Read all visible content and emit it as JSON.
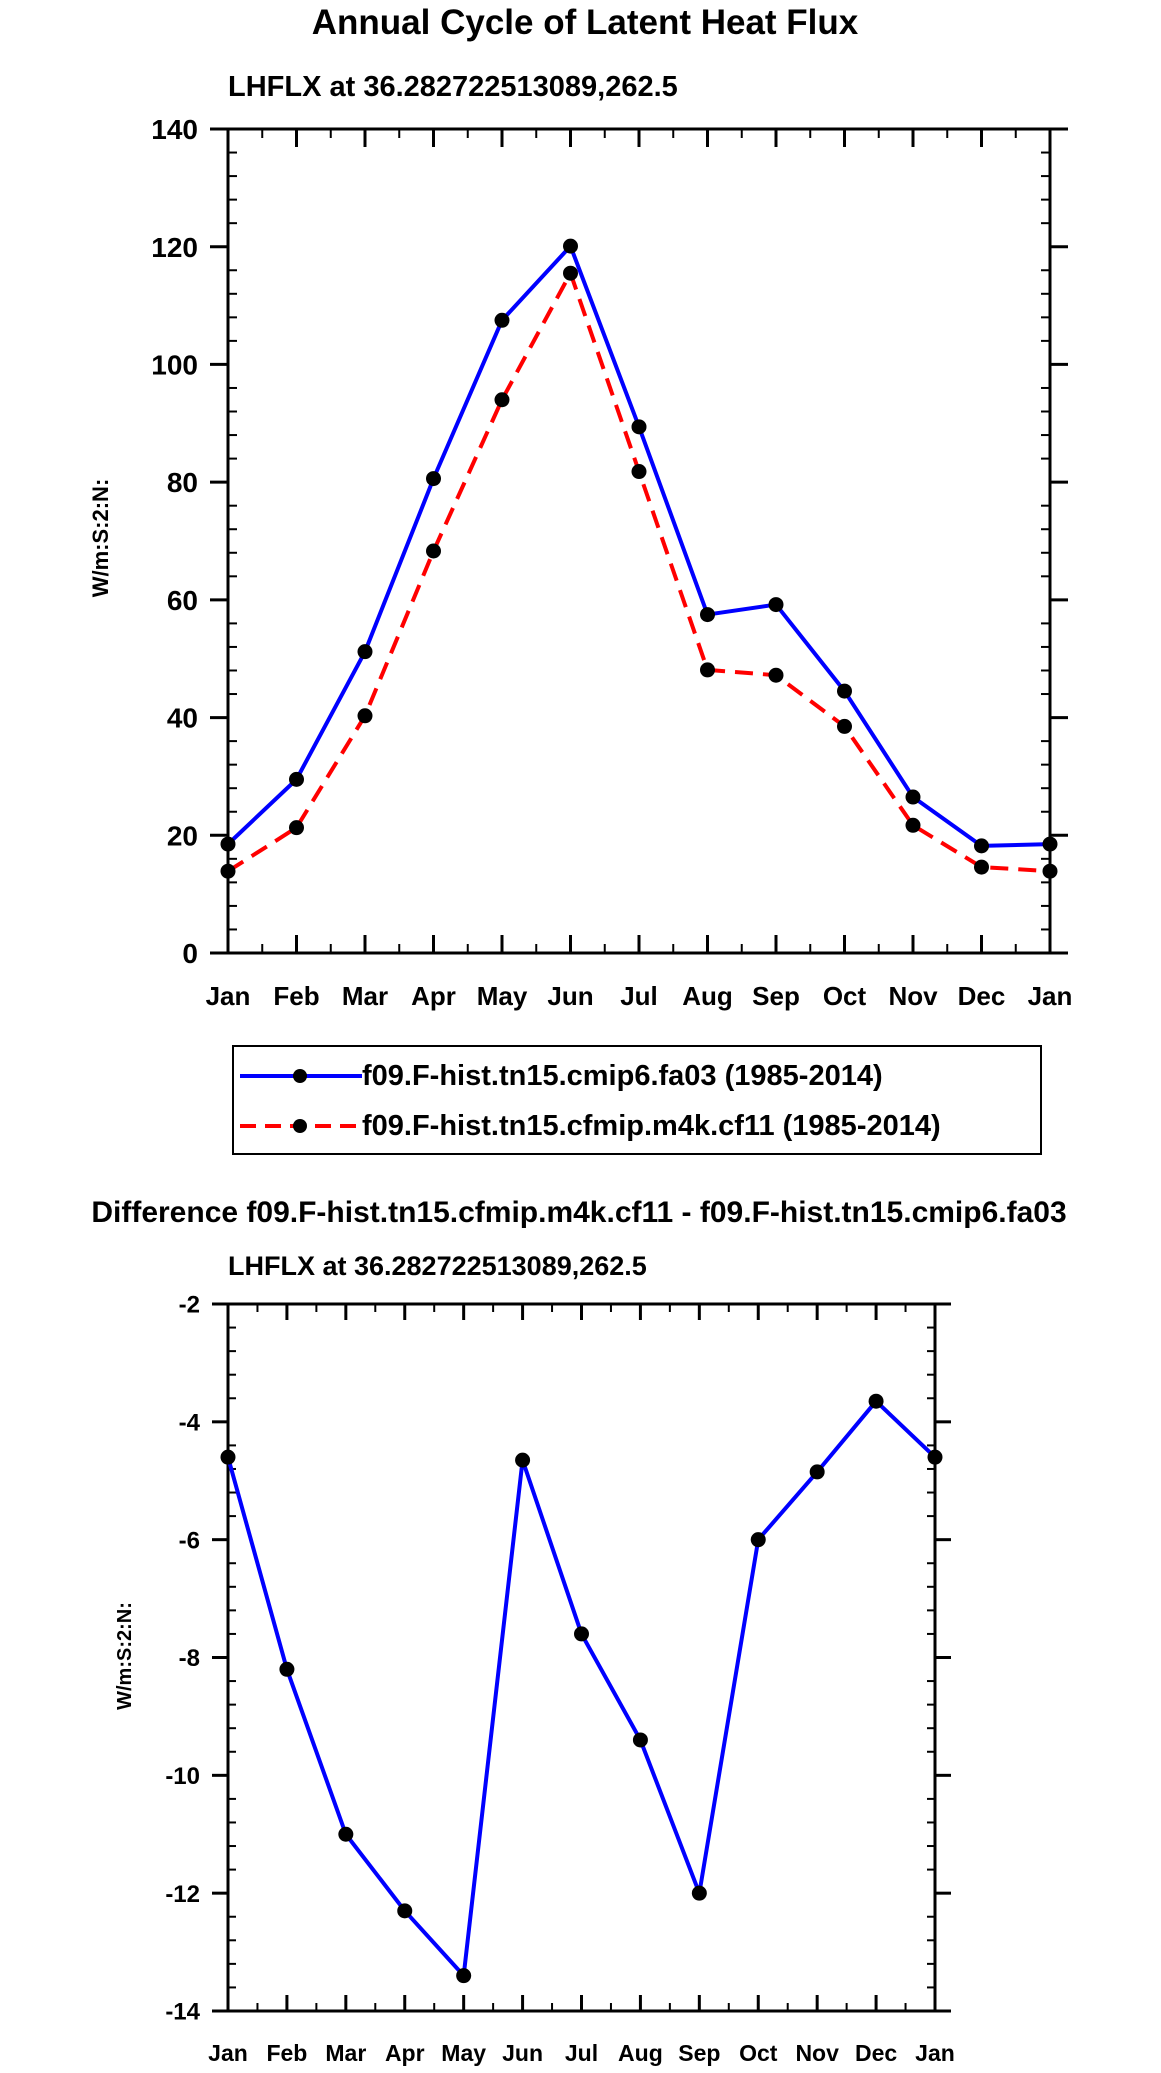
{
  "chart_data": [
    {
      "type": "line",
      "title": "Annual Cycle of Latent Heat Flux",
      "subtitle": "LHFLX at 36.282722513089,262.5",
      "xlabel": "",
      "ylabel": "W/m:S:2:N:",
      "categories": [
        "Jan",
        "Feb",
        "Mar",
        "Apr",
        "May",
        "Jun",
        "Jul",
        "Aug",
        "Sep",
        "Oct",
        "Nov",
        "Dec",
        "Jan"
      ],
      "ylim": [
        0,
        140
      ],
      "yticks": [
        0,
        20,
        40,
        60,
        80,
        100,
        120,
        140
      ],
      "ytick_labels": [
        "0",
        "20",
        "40",
        "60",
        "80",
        "100",
        "120",
        "140"
      ],
      "series": [
        {
          "name": "f09.F-hist.tn15.cmip6.fa03 (1985-2014)",
          "color": "#0000ff",
          "dash": "solid",
          "values": [
            18.5,
            29.5,
            51.2,
            80.6,
            107.5,
            120.1,
            89.4,
            57.5,
            59.2,
            44.5,
            26.5,
            18.2,
            18.5
          ]
        },
        {
          "name": "f09.F-hist.tn15.cfmip.m4k.cf11 (1985-2014)",
          "color": "#ff0000",
          "dash": "dashed",
          "values": [
            13.9,
            21.3,
            40.3,
            68.3,
            94.0,
            115.5,
            81.8,
            48.1,
            47.2,
            38.5,
            21.7,
            14.6,
            13.9
          ]
        }
      ],
      "legend": "bottom"
    },
    {
      "type": "line",
      "title": "Difference f09.F-hist.tn15.cfmip.m4k.cf11 - f09.F-hist.tn15.cmip6.fa03",
      "subtitle": "LHFLX at 36.282722513089,262.5",
      "xlabel": "",
      "ylabel": "W/m:S:2:N:",
      "categories": [
        "Jan",
        "Feb",
        "Mar",
        "Apr",
        "May",
        "Jun",
        "Jul",
        "Aug",
        "Sep",
        "Oct",
        "Nov",
        "Dec",
        "Jan"
      ],
      "ylim": [
        -14,
        -2
      ],
      "yticks": [
        -14,
        -12,
        -10,
        -8,
        -6,
        -4,
        -2
      ],
      "ytick_labels": [
        "-14",
        "-12",
        "-10",
        "-8",
        "-6",
        "-4",
        "-2"
      ],
      "series": [
        {
          "name": "Difference",
          "color": "#0000ff",
          "dash": "solid",
          "values": [
            -4.6,
            -8.2,
            -11.0,
            -12.3,
            -13.4,
            -4.65,
            -7.6,
            -9.4,
            -12.0,
            -6.0,
            -4.85,
            -3.65,
            -4.6
          ]
        }
      ]
    }
  ]
}
